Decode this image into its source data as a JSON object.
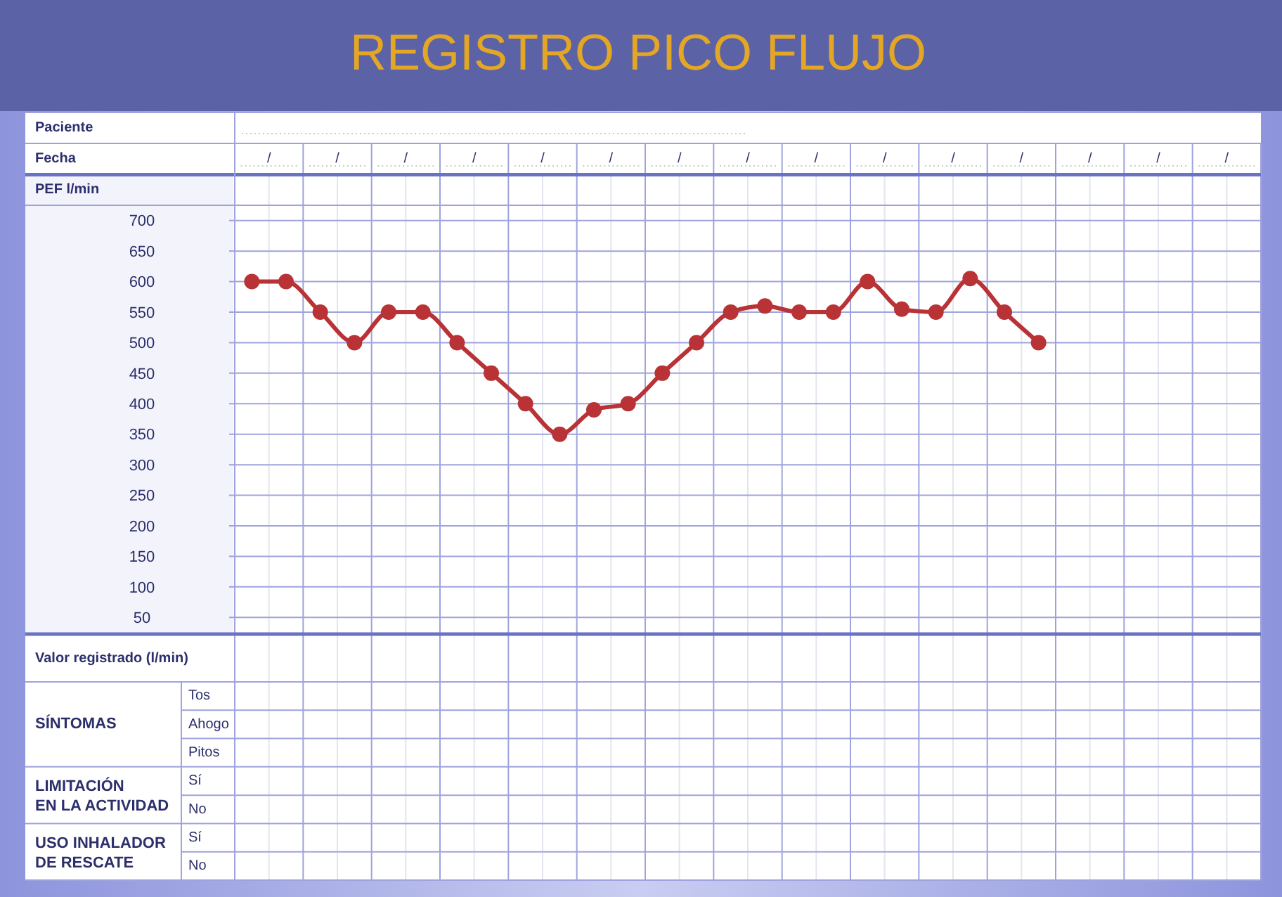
{
  "chart_data": {
    "type": "line",
    "title": "REGISTRO PICO FLUJO",
    "ylabel": "PEF l/min",
    "categories": [
      null,
      null,
      null,
      null,
      null,
      null,
      null,
      null,
      null,
      null,
      null,
      null,
      null,
      null,
      null,
      null,
      null,
      null,
      null,
      null,
      null,
      null,
      null,
      null,
      null,
      null,
      null,
      null,
      null,
      null
    ],
    "series": [
      {
        "color": "#b83236",
        "values": [
          600,
          600,
          550,
          500,
          550,
          550,
          500,
          450,
          400,
          350,
          390,
          400,
          450,
          500,
          550,
          560,
          550,
          550,
          600,
          555,
          550,
          605,
          550,
          500,
          null,
          null,
          null,
          null,
          null,
          null
        ]
      }
    ],
    "ylim": [
      25,
      725
    ],
    "yticks": [
      50,
      100,
      150,
      200,
      250,
      300,
      350,
      400,
      450,
      500,
      550,
      600,
      650,
      700
    ],
    "grid": true,
    "marker": "circle",
    "annotations": [
      "Paciente",
      "Fecha",
      "/",
      "/",
      "/",
      "/",
      "/",
      "/",
      "/",
      "/",
      "/",
      "/",
      "/",
      "/",
      "/",
      "/",
      "/",
      "Valor registrado (l/min)",
      "SÍNTOMAS",
      "Tos",
      "Ahogo",
      "Pitos",
      "LIMITACIÓN EN LA ACTIVIDAD",
      "Sí",
      "No",
      "USO INHALADOR DE RESCATE",
      "Sí",
      "No"
    ]
  }
}
